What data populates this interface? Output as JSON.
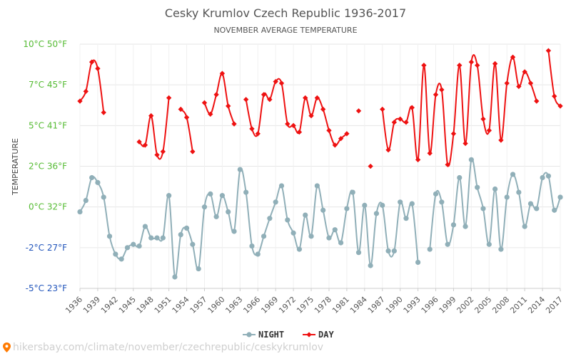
{
  "chart_data": {
    "type": "line",
    "title": "Cesky Krumlov Czech Republic 1936-2017",
    "subtitle": "NOVEMBER AVERAGE TEMPERATURE",
    "ylabel": "TEMPERATURE",
    "ylim": [
      -5,
      10
    ],
    "yticks": [
      {
        "value": 10,
        "label": "10°C 50°F"
      },
      {
        "value": 7.5,
        "label": "7°C 45°F"
      },
      {
        "value": 5,
        "label": "5°C 41°F"
      },
      {
        "value": 2.5,
        "label": "2°C 36°F"
      },
      {
        "value": 0,
        "label": "0°C 32°F"
      },
      {
        "value": -2.5,
        "label": "-2°C 27°F"
      },
      {
        "value": -5,
        "label": "-5°C 23°F"
      }
    ],
    "xlim": [
      1936,
      2017
    ],
    "xtick_labels": [
      "1936",
      "1939",
      "1942",
      "1945",
      "1948",
      "1951",
      "1954",
      "1957",
      "1960",
      "1963",
      "1966",
      "1969",
      "1972",
      "1975",
      "1978",
      "1981",
      "1984",
      "1987",
      "1990",
      "1993",
      "1996",
      "1999",
      "2002",
      "2005",
      "2008",
      "2011",
      "2014",
      "2017"
    ],
    "grid": true,
    "legend": "bottom-center",
    "series": [
      {
        "name": "NIGHT",
        "color": "#90afb8",
        "values": [
          [
            1936,
            -0.3
          ],
          [
            1937,
            0.4
          ],
          [
            1938,
            1.8
          ],
          [
            1939,
            1.5
          ],
          [
            1940,
            0.6
          ],
          [
            1941,
            -1.8
          ],
          [
            1942,
            -2.9
          ],
          [
            1943,
            -3.2
          ],
          [
            1944,
            -2.5
          ],
          [
            1945,
            -2.3
          ],
          [
            1946,
            -2.4
          ],
          [
            1947,
            -1.2
          ],
          [
            1948,
            -1.9
          ],
          [
            1949,
            -1.9
          ],
          [
            1950,
            -1.9
          ],
          [
            1951,
            0.7
          ],
          [
            1952,
            -4.3
          ],
          [
            1953,
            -1.7
          ],
          [
            1954,
            -1.3
          ],
          [
            1955,
            -2.3
          ],
          [
            1956,
            -3.8
          ],
          [
            1957,
            0.0
          ],
          [
            1958,
            0.8
          ],
          [
            1959,
            -0.6
          ],
          [
            1960,
            0.7
          ],
          [
            1961,
            -0.3
          ],
          [
            1962,
            -1.5
          ],
          [
            1963,
            2.3
          ],
          [
            1964,
            0.9
          ],
          [
            1965,
            -2.4
          ],
          [
            1966,
            -2.9
          ],
          [
            1967,
            -1.8
          ],
          [
            1968,
            -0.7
          ],
          [
            1969,
            0.3
          ],
          [
            1970,
            1.3
          ],
          [
            1971,
            -0.8
          ],
          [
            1972,
            -1.6
          ],
          [
            1973,
            -2.6
          ],
          [
            1974,
            -0.5
          ],
          [
            1975,
            -1.8
          ],
          [
            1976,
            1.3
          ],
          [
            1977,
            -0.2
          ],
          [
            1978,
            -1.9
          ],
          [
            1979,
            -1.4
          ],
          [
            1980,
            -2.2
          ],
          [
            1981,
            -0.1
          ],
          [
            1982,
            0.9
          ],
          [
            1983,
            -2.8
          ],
          [
            1984,
            0.1
          ],
          [
            1985,
            -3.6
          ],
          [
            1986,
            -0.4
          ],
          [
            1987,
            0.1
          ],
          [
            1988,
            -2.7
          ],
          [
            1989,
            -2.7
          ],
          [
            1990,
            0.3
          ],
          [
            1991,
            -0.7
          ],
          [
            1992,
            0.2
          ],
          [
            1993,
            -3.4
          ],
          [
            1995,
            -2.6
          ],
          [
            1996,
            0.8
          ],
          [
            1997,
            0.3
          ],
          [
            1998,
            -2.3
          ],
          [
            1999,
            -1.1
          ],
          [
            2000,
            1.8
          ],
          [
            2001,
            -1.2
          ],
          [
            2002,
            2.9
          ],
          [
            2003,
            1.2
          ],
          [
            2004,
            -0.1
          ],
          [
            2005,
            -2.3
          ],
          [
            2006,
            1.1
          ],
          [
            2007,
            -2.6
          ],
          [
            2008,
            0.6
          ],
          [
            2009,
            2.0
          ],
          [
            2010,
            0.9
          ],
          [
            2011,
            -1.2
          ],
          [
            2012,
            0.2
          ],
          [
            2013,
            -0.1
          ],
          [
            2014,
            1.8
          ],
          [
            2015,
            1.9
          ],
          [
            2016,
            -0.2
          ],
          [
            2017,
            0.6
          ]
        ]
      },
      {
        "name": "DAY",
        "color": "#ee1111",
        "values": [
          [
            1936,
            6.5
          ],
          [
            1937,
            7.1
          ],
          [
            1938,
            8.9
          ],
          [
            1939,
            8.5
          ],
          [
            1940,
            5.8
          ],
          [
            1946,
            4.0
          ],
          [
            1947,
            3.8
          ],
          [
            1948,
            5.6
          ],
          [
            1949,
            3.2
          ],
          [
            1950,
            3.4
          ],
          [
            1951,
            6.7
          ],
          [
            1953,
            6.0
          ],
          [
            1954,
            5.5
          ],
          [
            1955,
            3.4
          ],
          [
            1957,
            6.4
          ],
          [
            1958,
            5.7
          ],
          [
            1959,
            6.9
          ],
          [
            1960,
            8.2
          ],
          [
            1961,
            6.2
          ],
          [
            1962,
            5.1
          ],
          [
            1964,
            6.6
          ],
          [
            1965,
            4.8
          ],
          [
            1966,
            4.5
          ],
          [
            1967,
            6.9
          ],
          [
            1968,
            6.6
          ],
          [
            1969,
            7.7
          ],
          [
            1970,
            7.6
          ],
          [
            1971,
            5.1
          ],
          [
            1972,
            5.0
          ],
          [
            1973,
            4.6
          ],
          [
            1974,
            6.7
          ],
          [
            1975,
            5.6
          ],
          [
            1976,
            6.7
          ],
          [
            1977,
            6.0
          ],
          [
            1978,
            4.7
          ],
          [
            1979,
            3.8
          ],
          [
            1980,
            4.2
          ],
          [
            1981,
            4.5
          ],
          [
            1983,
            5.9
          ],
          [
            1985,
            2.5
          ],
          [
            1987,
            6.0
          ],
          [
            1988,
            3.5
          ],
          [
            1989,
            5.2
          ],
          [
            1990,
            5.4
          ],
          [
            1991,
            5.2
          ],
          [
            1992,
            6.1
          ],
          [
            1993,
            2.9
          ],
          [
            1994,
            8.7
          ],
          [
            1995,
            3.3
          ],
          [
            1996,
            6.9
          ],
          [
            1997,
            7.2
          ],
          [
            1998,
            2.6
          ],
          [
            1999,
            4.5
          ],
          [
            2000,
            8.7
          ],
          [
            2001,
            3.9
          ],
          [
            2002,
            8.9
          ],
          [
            2003,
            8.7
          ],
          [
            2004,
            5.4
          ],
          [
            2005,
            4.7
          ],
          [
            2006,
            8.8
          ],
          [
            2007,
            4.1
          ],
          [
            2008,
            7.6
          ],
          [
            2009,
            9.2
          ],
          [
            2010,
            7.4
          ],
          [
            2011,
            8.3
          ],
          [
            2012,
            7.6
          ],
          [
            2013,
            6.5
          ],
          [
            2015,
            9.6
          ],
          [
            2016,
            6.8
          ],
          [
            2017,
            6.2
          ]
        ]
      }
    ]
  },
  "source_text": "hikersbay.com/climate/november/czechrepublic/ceskykrumlov"
}
